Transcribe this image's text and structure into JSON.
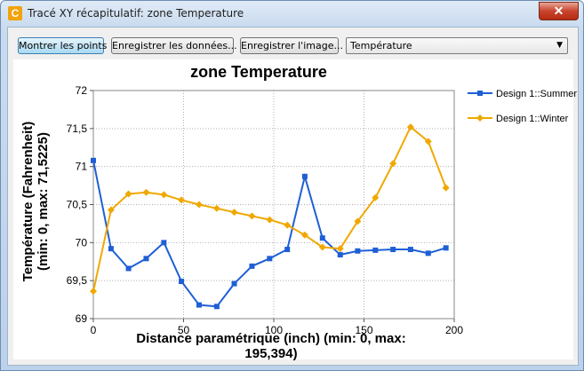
{
  "window": {
    "title": "Tracé XY récapitulatif: zone Temperature",
    "app_icon_glyph": "C",
    "close_glyph": "✕"
  },
  "toolbar": {
    "show_points_label": "Montrer les points",
    "save_data_label": "Enregistrer les données...",
    "save_image_label": "Enregistrer l'image...",
    "quantity_select_value": "Température",
    "dropdown_icon": "▼"
  },
  "chart_data": {
    "type": "line",
    "title": "zone Temperature",
    "xlabel_line1": "Distance paramétrique (inch) (min: 0, max:",
    "xlabel_line2": "195,394)",
    "ylabel_line1": "Température (Fahrenheit)",
    "ylabel_line2": "(min: 0, max: 71,5225)",
    "xlim": [
      0,
      200
    ],
    "ylim": [
      69,
      72
    ],
    "x_ticks": [
      "0",
      "50",
      "100",
      "150",
      "200"
    ],
    "y_ticks": [
      "69",
      "69,5",
      "70",
      "70,5",
      "71",
      "71,5",
      "72"
    ],
    "grid": true,
    "legend_position": "right",
    "series": [
      {
        "name": "Design 1::Summer",
        "color": "#1f5fd6",
        "marker": "square",
        "points": [
          [
            0,
            71.08
          ],
          [
            9.8,
            69.92
          ],
          [
            19.5,
            69.66
          ],
          [
            29.3,
            69.79
          ],
          [
            39.1,
            70.0
          ],
          [
            48.8,
            69.49
          ],
          [
            58.6,
            69.18
          ],
          [
            68.4,
            69.16
          ],
          [
            78.1,
            69.46
          ],
          [
            87.9,
            69.69
          ],
          [
            97.7,
            69.79
          ],
          [
            107.5,
            69.91
          ],
          [
            117.2,
            70.87
          ],
          [
            127.0,
            70.06
          ],
          [
            136.8,
            69.84
          ],
          [
            146.5,
            69.89
          ],
          [
            156.3,
            69.9
          ],
          [
            166.1,
            69.91
          ],
          [
            175.8,
            69.91
          ],
          [
            185.6,
            69.86
          ],
          [
            195.4,
            69.93
          ]
        ]
      },
      {
        "name": "Design 1::Winter",
        "color": "#f0a800",
        "marker": "diamond",
        "points": [
          [
            0,
            69.36
          ],
          [
            9.8,
            70.43
          ],
          [
            19.5,
            70.64
          ],
          [
            29.3,
            70.66
          ],
          [
            39.1,
            70.63
          ],
          [
            48.8,
            70.56
          ],
          [
            58.6,
            70.5
          ],
          [
            68.4,
            70.45
          ],
          [
            78.1,
            70.4
          ],
          [
            87.9,
            70.35
          ],
          [
            97.7,
            70.3
          ],
          [
            107.5,
            70.23
          ],
          [
            117.2,
            70.1
          ],
          [
            127.0,
            69.94
          ],
          [
            136.8,
            69.92
          ],
          [
            146.5,
            70.28
          ],
          [
            156.3,
            70.59
          ],
          [
            166.1,
            71.04
          ],
          [
            175.8,
            71.52
          ],
          [
            185.6,
            71.33
          ],
          [
            195.4,
            70.72
          ]
        ]
      }
    ]
  }
}
